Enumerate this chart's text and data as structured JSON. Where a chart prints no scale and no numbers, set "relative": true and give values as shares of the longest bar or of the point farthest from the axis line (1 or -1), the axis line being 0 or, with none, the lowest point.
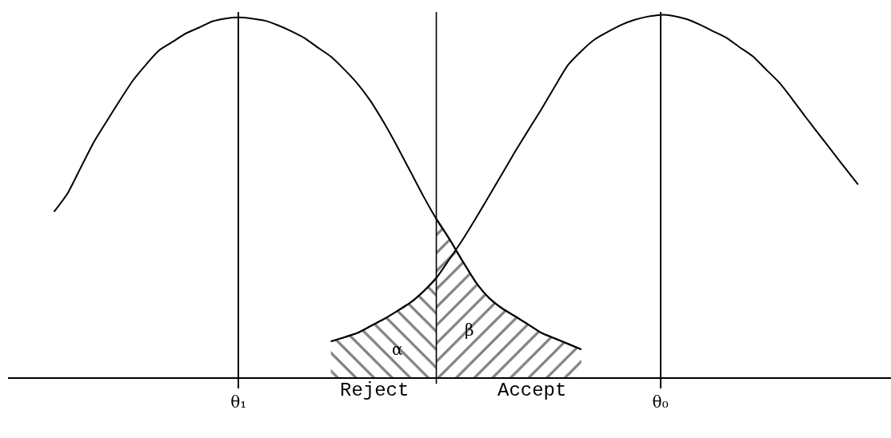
{
  "chart_data": {
    "type": "line",
    "relative": true,
    "grid": "x",
    "categories": [
      null,
      null,
      null,
      null,
      null,
      null,
      null,
      null,
      null,
      null,
      null,
      null,
      null,
      null,
      null,
      null,
      null,
      "θ₁",
      null,
      null,
      null,
      null,
      null,
      null,
      null,
      null,
      null,
      null,
      null,
      null,
      null,
      null,
      null,
      null,
      null,
      null,
      null,
      null,
      null,
      null,
      null,
      null,
      null,
      null,
      null,
      null,
      null,
      null,
      null,
      "θ₀",
      null,
      null,
      null,
      null,
      null,
      null,
      null,
      null,
      null,
      null,
      null,
      null,
      null,
      null,
      null,
      null,
      null
    ],
    "series": [
      {
        "color": "#000000",
        "values": [
          null,
          null,
          null,
          0.457,
          0.506,
          0.577,
          0.648,
          0.707,
          0.765,
          0.82,
          0.864,
          0.903,
          0.926,
          0.949,
          0.965,
          0.982,
          0.99,
          0.993,
          0.99,
          0.984,
          0.971,
          0.955,
          0.936,
          0.91,
          0.885,
          0.85,
          0.811,
          0.763,
          0.704,
          0.639,
          0.57,
          0.501,
          0.437,
          0.381,
          0.32,
          0.262,
          0.219,
          0.19,
          0.168,
          0.145,
          0.122,
          0.107,
          0.092,
          0.077,
          null,
          null,
          null,
          null,
          null,
          null,
          null,
          null,
          null,
          null,
          null,
          null,
          null,
          null,
          null,
          null,
          null,
          null,
          null,
          null,
          null,
          null,
          null
        ]
      },
      {
        "color": "#000000",
        "values": [
          null,
          null,
          null,
          null,
          null,
          null,
          null,
          null,
          null,
          null,
          null,
          null,
          null,
          null,
          null,
          null,
          null,
          null,
          null,
          null,
          null,
          null,
          null,
          null,
          0.099,
          0.11,
          0.122,
          0.141,
          0.16,
          0.182,
          0.205,
          0.236,
          0.274,
          0.326,
          0.38,
          0.439,
          0.5,
          0.562,
          0.624,
          0.683,
          0.741,
          0.803,
          0.862,
          0.9,
          0.932,
          0.953,
          0.972,
          0.986,
          0.995,
          1.0,
          0.997,
          0.988,
          0.973,
          0.955,
          0.937,
          0.911,
          0.886,
          0.85,
          0.814,
          0.768,
          0.719,
          0.672,
          0.625,
          0.578,
          0.532,
          null,
          null
        ]
      },
      {
        "type": "area",
        "color": "#000000",
        "values": [
          null,
          null,
          null,
          null,
          null,
          null,
          null,
          null,
          null,
          null,
          null,
          null,
          null,
          null,
          null,
          null,
          null,
          null,
          null,
          null,
          null,
          null,
          null,
          null,
          0.099,
          0.11,
          0.122,
          0.141,
          0.16,
          0.182,
          0.205,
          0.236,
          0.274,
          null,
          null,
          null,
          null,
          null,
          null,
          null,
          null,
          null,
          null,
          null,
          null,
          null,
          null,
          null,
          null,
          null,
          null,
          null,
          null,
          null,
          null,
          null,
          null,
          null,
          null,
          null,
          null,
          null,
          null,
          null,
          null,
          null,
          null
        ]
      },
      {
        "type": "area",
        "color": "#000000",
        "values": [
          null,
          null,
          null,
          null,
          null,
          null,
          null,
          null,
          null,
          null,
          null,
          null,
          null,
          null,
          null,
          null,
          null,
          null,
          null,
          null,
          null,
          null,
          null,
          null,
          null,
          null,
          null,
          null,
          null,
          null,
          null,
          null,
          0.437,
          0.381,
          0.32,
          0.262,
          0.219,
          0.19,
          0.168,
          0.145,
          0.122,
          0.107,
          0.092,
          0.077,
          null,
          null,
          null,
          null,
          null,
          null,
          null,
          null,
          null,
          null,
          null,
          null,
          null,
          null,
          null,
          null,
          null,
          null,
          null,
          null,
          null,
          null,
          null
        ]
      }
    ],
    "annotations": [
      "α",
      "β",
      "Reject",
      "Accept"
    ]
  }
}
